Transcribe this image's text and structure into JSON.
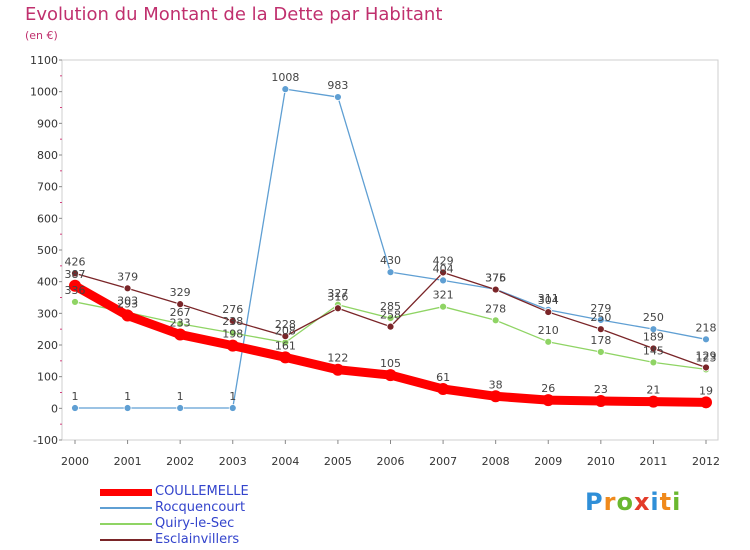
{
  "header": {
    "title": "Evolution du Montant de la Dette par Habitant",
    "subtitle": "(en €)"
  },
  "logo": {
    "letters": [
      "P",
      "r",
      "o",
      "x",
      "i",
      "t",
      "i"
    ],
    "colors": [
      "#2f8fd8",
      "#f08a1c",
      "#6ab82f",
      "#e33b2a",
      "#2f8fd8",
      "#f08a1c",
      "#6ab82f"
    ]
  },
  "chart_data": {
    "type": "line",
    "title": "Evolution du Montant de la Dette par Habitant",
    "subtitle": "(en €)",
    "x": [
      "2000",
      "2001",
      "2002",
      "2003",
      "2004",
      "2005",
      "2006",
      "2007",
      "2008",
      "2009",
      "2010",
      "2011",
      "2012"
    ],
    "y_ticks": [
      "1100",
      "1000",
      "900",
      "800",
      "700",
      "600",
      "500",
      "400",
      "300",
      "200",
      "100",
      "0",
      "-100"
    ],
    "ylim": [
      -100,
      1100
    ],
    "grid": false,
    "legend": "bottom-left",
    "series": [
      {
        "name": "COULLEMELLE",
        "color": "#ff0000",
        "values": [
          387,
          293,
          233,
          198,
          161,
          122,
          105,
          61,
          38,
          26,
          23,
          21,
          19
        ],
        "labels": [
          "387",
          "293",
          "233",
          "198",
          "161",
          "122",
          "105",
          "61",
          "38",
          "26",
          "23",
          "21",
          "19"
        ]
      },
      {
        "name": "Rocquencourt",
        "color": "#5f9fd3",
        "values": [
          1,
          1,
          1,
          1,
          1008,
          983,
          430,
          404,
          376,
          311,
          279,
          250,
          218
        ],
        "labels": [
          "1",
          "1",
          "1",
          "1",
          "1008",
          "983",
          "430",
          "404",
          "376",
          "311",
          "279",
          "250",
          "218"
        ]
      },
      {
        "name": "Quiry-le-Sec",
        "color": "#8fd464",
        "values": [
          336,
          303,
          267,
          238,
          208,
          327,
          285,
          321,
          278,
          210,
          178,
          145,
          123
        ],
        "labels": [
          "336",
          "303",
          "267",
          "238",
          "208",
          "327",
          "285",
          "321",
          "278",
          "210",
          "178",
          "145",
          "123"
        ]
      },
      {
        "name": "Esclainvillers",
        "color": "#7a2528",
        "values": [
          426,
          379,
          329,
          276,
          228,
          316,
          258,
          429,
          375,
          304,
          250,
          189,
          129
        ],
        "labels": [
          "426",
          "379",
          "329",
          "276",
          "228",
          "316",
          "258",
          "429",
          "375",
          "304",
          "250",
          "189",
          "129"
        ]
      }
    ]
  }
}
